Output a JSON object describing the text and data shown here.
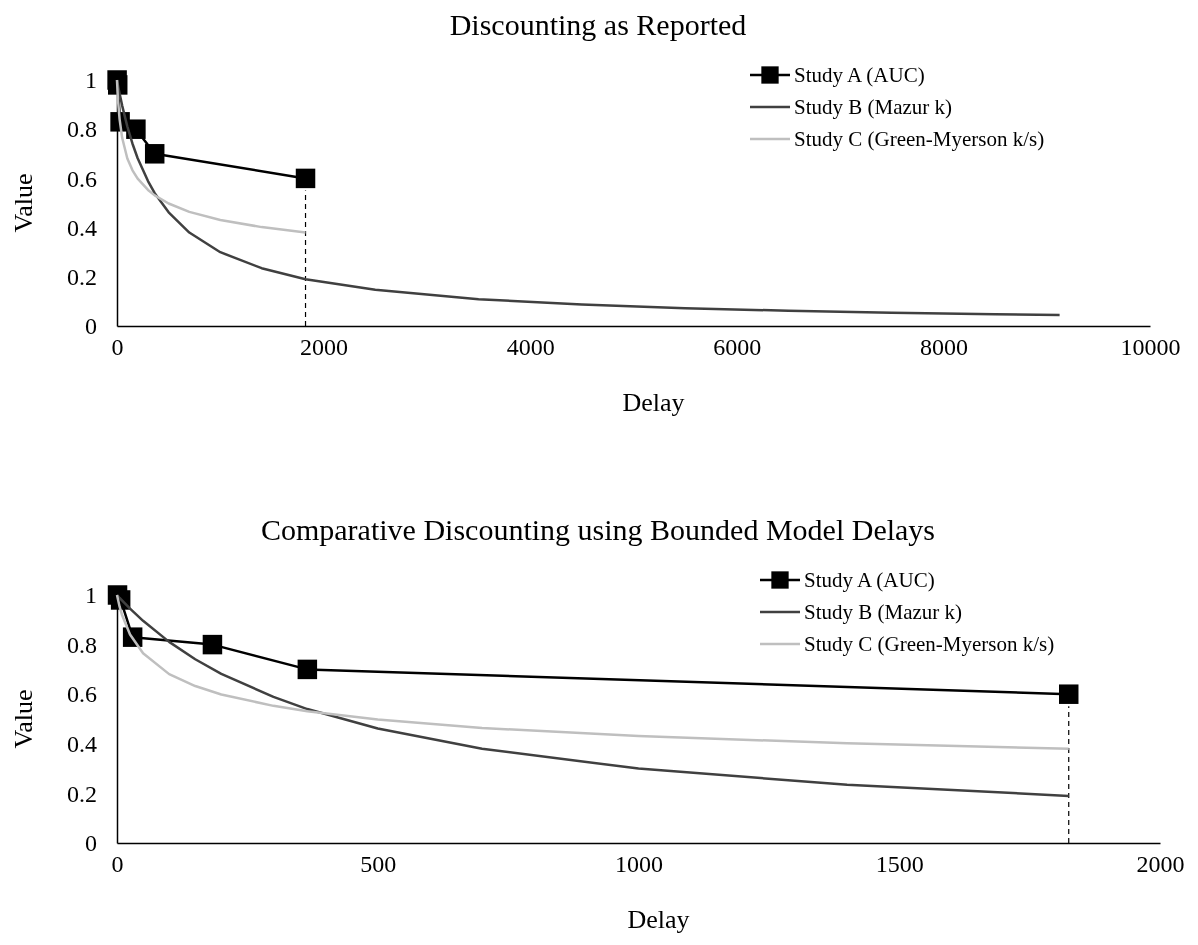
{
  "chart_data": [
    {
      "type": "line",
      "title": "Discounting as Reported",
      "xlabel": "Delay",
      "ylabel": "Value",
      "xlim": [
        0,
        10000
      ],
      "xticks": [
        0,
        2000,
        4000,
        6000,
        8000,
        10000
      ],
      "ylim": [
        0,
        1
      ],
      "yticks": [
        0,
        0.2,
        0.4,
        0.6,
        0.8,
        1
      ],
      "grid": false,
      "legend": "top right",
      "ref_lines": [
        {
          "axis": "x",
          "value": 1825,
          "color": "#000000",
          "line_style": "dashed"
        }
      ],
      "series": [
        {
          "name": "Study A (AUC)",
          "color": "#000000",
          "marker": "square",
          "x": [
            1,
            7,
            30,
            183,
            365,
            1825
          ],
          "values": [
            1.0,
            0.98,
            0.83,
            0.8,
            0.7,
            0.6
          ]
        },
        {
          "name": "Study B (Mazur k)",
          "color": "#404040",
          "marker": "none",
          "x": [
            0,
            5,
            10,
            25,
            50,
            100,
            150,
            200,
            300,
            365,
            500,
            700,
            1000,
            1400,
            1825,
            2500,
            3500,
            4500,
            5500,
            6500,
            7500,
            8500,
            9125
          ],
          "values": [
            1,
            0.988,
            0.977,
            0.945,
            0.896,
            0.811,
            0.741,
            0.682,
            0.589,
            0.54,
            0.462,
            0.38,
            0.3,
            0.235,
            0.19,
            0.147,
            0.109,
            0.087,
            0.072,
            0.062,
            0.054,
            0.048,
            0.045
          ]
        },
        {
          "name": "Study C (Green-Myerson k/s)",
          "color": "#bfbfbf",
          "marker": "none",
          "x": [
            0,
            5,
            10,
            25,
            50,
            100,
            150,
            200,
            300,
            365,
            500,
            700,
            1000,
            1400,
            1825
          ],
          "values": [
            1,
            0.953,
            0.917,
            0.841,
            0.765,
            0.681,
            0.633,
            0.599,
            0.553,
            0.531,
            0.498,
            0.464,
            0.431,
            0.402,
            0.38
          ]
        }
      ]
    },
    {
      "type": "line",
      "title": "Comparative Discounting using Bounded Model Delays",
      "xlabel": "Delay",
      "ylabel": "Value",
      "xlim": [
        0,
        2000
      ],
      "xticks": [
        0,
        500,
        1000,
        1500,
        2000
      ],
      "ylim": [
        0,
        1
      ],
      "yticks": [
        0,
        0.2,
        0.4,
        0.6,
        0.8,
        1
      ],
      "grid": false,
      "legend": "top right",
      "ref_lines": [
        {
          "axis": "x",
          "value": 1825,
          "color": "#000000",
          "line_style": "dashed"
        }
      ],
      "series": [
        {
          "name": "Study A (AUC)",
          "color": "#000000",
          "marker": "square",
          "x": [
            1,
            7,
            30,
            183,
            365,
            1825
          ],
          "values": [
            1.0,
            0.98,
            0.83,
            0.8,
            0.7,
            0.6
          ]
        },
        {
          "name": "Study B (Mazur k)",
          "color": "#404040",
          "marker": "none",
          "x": [
            0,
            5,
            10,
            25,
            50,
            100,
            150,
            200,
            300,
            365,
            500,
            700,
            1000,
            1400,
            1825
          ],
          "values": [
            1,
            0.988,
            0.977,
            0.945,
            0.896,
            0.811,
            0.741,
            0.682,
            0.589,
            0.54,
            0.462,
            0.38,
            0.3,
            0.235,
            0.19
          ]
        },
        {
          "name": "Study C (Green-Myerson k/s)",
          "color": "#bfbfbf",
          "marker": "none",
          "x": [
            0,
            5,
            10,
            25,
            50,
            100,
            150,
            200,
            300,
            365,
            500,
            700,
            1000,
            1400,
            1825
          ],
          "values": [
            1,
            0.953,
            0.917,
            0.841,
            0.765,
            0.681,
            0.633,
            0.599,
            0.553,
            0.531,
            0.498,
            0.464,
            0.431,
            0.402,
            0.38
          ]
        }
      ]
    }
  ]
}
